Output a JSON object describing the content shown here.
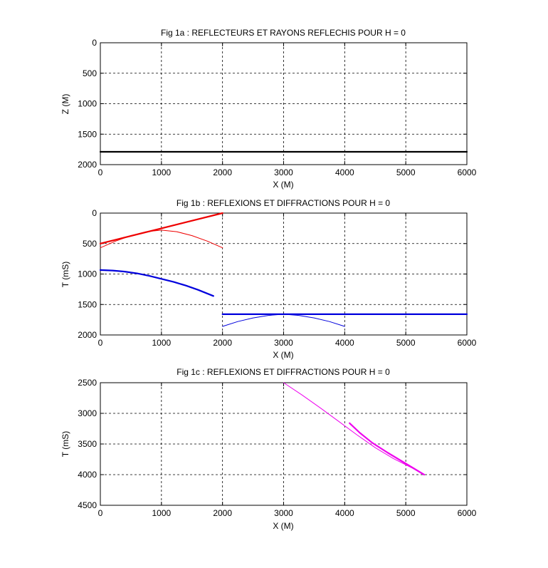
{
  "chart_data": [
    {
      "type": "line",
      "title": "Fig 1a : REFLECTEURS ET RAYONS REFLECHIS POUR H = 0",
      "xlabel": "X (M)",
      "ylabel": "Z (M)",
      "xlim": [
        0,
        6000
      ],
      "ylim": [
        0,
        2000
      ],
      "y_reversed": true,
      "grid": true,
      "xticks": [
        "0",
        "1000",
        "2000",
        "3000",
        "4000",
        "5000",
        "6000"
      ],
      "yticks": [
        "0",
        "500",
        "1000",
        "1500",
        "2000"
      ],
      "series": [
        {
          "color": "#000000",
          "width": "thick",
          "x": [
            0,
            6000
          ],
          "y": [
            1790,
            1790
          ]
        }
      ]
    },
    {
      "type": "line",
      "title": "Fig 1b : REFLEXIONS ET DIFFRACTIONS POUR H = 0",
      "xlabel": "X (M)",
      "ylabel": "T (mS)",
      "xlim": [
        0,
        6000
      ],
      "ylim": [
        0,
        2000
      ],
      "y_reversed": true,
      "grid": true,
      "xticks": [
        "0",
        "1000",
        "2000",
        "3000",
        "4000",
        "5000",
        "6000"
      ],
      "yticks": [
        "0",
        "500",
        "1000",
        "1500",
        "2000"
      ],
      "series": [
        {
          "color": "#ee0000",
          "width": "thick",
          "x": [
            0,
            500,
            1000,
            1500,
            2000
          ],
          "y": [
            500,
            375,
            250,
            125,
            0
          ]
        },
        {
          "color": "#ee0000",
          "width": "thin",
          "x": [
            0,
            250,
            500,
            750,
            1000,
            1250,
            1500,
            1750,
            2000
          ],
          "y": [
            570,
            460,
            370,
            305,
            280,
            305,
            370,
            460,
            570
          ]
        },
        {
          "color": "#0000dd",
          "width": "thick",
          "x": [
            0,
            200,
            400,
            600,
            800,
            1000,
            1200,
            1400,
            1600,
            1850
          ],
          "y": [
            935,
            943,
            960,
            990,
            1030,
            1080,
            1130,
            1190,
            1260,
            1360
          ]
        },
        {
          "color": "#0000dd",
          "width": "thick",
          "x": [
            2000,
            6000
          ],
          "y": [
            1660,
            1660
          ]
        },
        {
          "color": "#0000dd",
          "width": "thin",
          "x": [
            2000,
            2250,
            2500,
            2750,
            3000,
            3250,
            3500,
            3750,
            4000
          ],
          "y": [
            1860,
            1780,
            1720,
            1680,
            1660,
            1680,
            1720,
            1780,
            1860
          ]
        }
      ]
    },
    {
      "type": "line",
      "title": "Fig 1c : REFLEXIONS ET DIFFRACTIONS POUR H = 0",
      "xlabel": "X (M)",
      "ylabel": "T (mS)",
      "xlim": [
        0,
        6000
      ],
      "ylim": [
        2500,
        4500
      ],
      "y_reversed": true,
      "grid": true,
      "xticks": [
        "0",
        "1000",
        "2000",
        "3000",
        "4000",
        "5000",
        "6000"
      ],
      "yticks": [
        "2500",
        "3000",
        "3500",
        "4000",
        "4500"
      ],
      "series": [
        {
          "color": "#ee00ee",
          "width": "thin",
          "x": [
            3000,
            3300,
            3600,
            3900,
            4200,
            4500,
            4800,
            5100,
            5300
          ],
          "y": [
            2500,
            2700,
            2910,
            3130,
            3350,
            3560,
            3740,
            3890,
            4000
          ]
        },
        {
          "color": "#ee00ee",
          "width": "thick",
          "x": [
            4080,
            4250,
            4450,
            4700,
            5000,
            5300
          ],
          "y": [
            3160,
            3320,
            3480,
            3640,
            3820,
            4000
          ]
        }
      ]
    }
  ]
}
